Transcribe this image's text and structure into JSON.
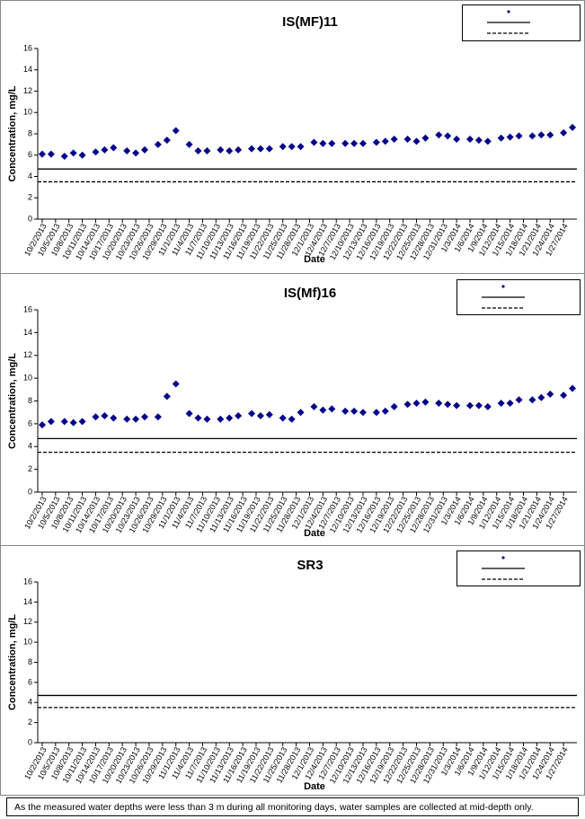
{
  "chart_data": [
    {
      "type": "scatter",
      "title": "IS(MF)11",
      "xlabel": "Date",
      "ylabel": "Concentration, mg/L",
      "x": [
        "10/2/2013",
        "10/4/2013",
        "10/7/2013",
        "10/9/2013",
        "10/11/2013",
        "10/14/2013",
        "10/16/2013",
        "10/18/2013",
        "10/21/2013",
        "10/23/2013",
        "10/25/2013",
        "10/28/2013",
        "10/30/2013",
        "11/1/2013",
        "11/4/2013",
        "11/6/2013",
        "11/8/2013",
        "11/11/2013",
        "11/13/2013",
        "11/15/2013",
        "11/18/2013",
        "11/20/2013",
        "11/22/2013",
        "11/25/2013",
        "11/27/2013",
        "11/29/2013",
        "12/2/2013",
        "12/4/2013",
        "12/6/2013",
        "12/9/2013",
        "12/11/2013",
        "12/13/2013",
        "12/16/2013",
        "12/18/2013",
        "12/20/2013",
        "12/23/2013",
        "12/25/2013",
        "12/27/2013",
        "12/30/2013",
        "1/1/2014",
        "1/3/2014",
        "1/6/2014",
        "1/8/2014",
        "1/10/2014",
        "1/13/2014",
        "1/15/2014",
        "1/17/2014",
        "1/20/2014",
        "1/22/2014",
        "1/24/2014",
        "1/27/2014",
        "1/29/2014"
      ],
      "series": [
        {
          "color": "#00008b",
          "values": [
            6.1,
            6.1,
            5.9,
            6.2,
            6.0,
            6.3,
            6.5,
            6.7,
            6.4,
            6.2,
            6.5,
            7.0,
            7.4,
            8.3,
            7.0,
            6.4,
            6.4,
            6.5,
            6.4,
            6.5,
            6.6,
            6.6,
            6.6,
            6.8,
            6.8,
            6.8,
            7.2,
            7.1,
            7.1,
            7.1,
            7.1,
            7.1,
            7.2,
            7.3,
            7.5,
            7.5,
            7.3,
            7.6,
            7.9,
            7.8,
            7.5,
            7.5,
            7.4,
            7.3,
            7.6,
            7.7,
            7.8,
            7.8,
            7.9,
            7.9,
            8.1,
            8.6
          ]
        }
      ],
      "reference_lines": [
        {
          "value": 4.7,
          "style": "solid",
          "color": "#000000"
        },
        {
          "value": 3.5,
          "style": "dashed",
          "color": "#000000"
        }
      ],
      "xlim": [
        "10/1/2013",
        "1/30/2014"
      ],
      "xticks": [
        "10/2/2013",
        "10/5/2013",
        "10/8/2013",
        "10/11/2013",
        "10/14/2013",
        "10/17/2013",
        "10/20/2013",
        "10/23/2013",
        "10/26/2013",
        "10/29/2013",
        "11/1/2013",
        "11/4/2013",
        "11/7/2013",
        "11/10/2013",
        "11/13/2013",
        "11/16/2013",
        "11/19/2013",
        "11/22/2013",
        "11/25/2013",
        "11/28/2013",
        "12/1/2013",
        "12/4/2013",
        "12/7/2013",
        "12/10/2013",
        "12/13/2013",
        "12/16/2013",
        "12/19/2013",
        "12/22/2013",
        "12/25/2013",
        "12/28/2013",
        "12/31/2013",
        "1/3/2014",
        "1/6/2014",
        "1/9/2014",
        "1/12/2014",
        "1/15/2014",
        "1/18/2014",
        "1/21/2014",
        "1/24/2014",
        "1/27/2014"
      ],
      "ylim": [
        0,
        16
      ],
      "yticks": [
        0,
        2,
        4,
        6,
        8,
        10,
        12,
        14,
        16
      ],
      "grid": false
    },
    {
      "type": "scatter",
      "title": "IS(Mf)16",
      "xlabel": "Date",
      "ylabel": "Concentration, mg/L",
      "x": [
        "10/2/2013",
        "10/4/2013",
        "10/7/2013",
        "10/9/2013",
        "10/11/2013",
        "10/14/2013",
        "10/16/2013",
        "10/18/2013",
        "10/21/2013",
        "10/23/2013",
        "10/25/2013",
        "10/28/2013",
        "10/30/2013",
        "11/1/2013",
        "11/4/2013",
        "11/6/2013",
        "11/8/2013",
        "11/11/2013",
        "11/13/2013",
        "11/15/2013",
        "11/18/2013",
        "11/20/2013",
        "11/22/2013",
        "11/25/2013",
        "11/27/2013",
        "11/29/2013",
        "12/2/2013",
        "12/4/2013",
        "12/6/2013",
        "12/9/2013",
        "12/11/2013",
        "12/13/2013",
        "12/16/2013",
        "12/18/2013",
        "12/20/2013",
        "12/23/2013",
        "12/25/2013",
        "12/27/2013",
        "12/30/2013",
        "1/1/2014",
        "1/3/2014",
        "1/6/2014",
        "1/8/2014",
        "1/10/2014",
        "1/13/2014",
        "1/15/2014",
        "1/17/2014",
        "1/20/2014",
        "1/22/2014",
        "1/24/2014",
        "1/27/2014",
        "1/29/2014"
      ],
      "series": [
        {
          "color": "#00008b",
          "values": [
            5.9,
            6.2,
            6.2,
            6.1,
            6.2,
            6.6,
            6.7,
            6.5,
            6.4,
            6.4,
            6.6,
            6.6,
            8.4,
            9.5,
            6.9,
            6.5,
            6.4,
            6.4,
            6.5,
            6.7,
            6.9,
            6.7,
            6.8,
            6.5,
            6.4,
            7.0,
            7.5,
            7.2,
            7.3,
            7.1,
            7.1,
            7.0,
            7.0,
            7.1,
            7.5,
            7.7,
            7.8,
            7.9,
            7.8,
            7.7,
            7.6,
            7.6,
            7.6,
            7.5,
            7.8,
            7.8,
            8.1,
            8.1,
            8.3,
            8.6,
            8.5,
            9.1
          ]
        }
      ],
      "reference_lines": [
        {
          "value": 4.7,
          "style": "solid",
          "color": "#000000"
        },
        {
          "value": 3.5,
          "style": "dashed",
          "color": "#000000"
        }
      ],
      "xlim": [
        "10/1/2013",
        "1/30/2014"
      ],
      "xticks": [
        "10/2/2013",
        "10/5/2013",
        "10/8/2013",
        "10/11/2013",
        "10/14/2013",
        "10/17/2013",
        "10/20/2013",
        "10/23/2013",
        "10/26/2013",
        "10/29/2013",
        "11/1/2013",
        "11/4/2013",
        "11/7/2013",
        "11/10/2013",
        "11/13/2013",
        "11/16/2013",
        "11/19/2013",
        "11/22/2013",
        "11/25/2013",
        "11/28/2013",
        "12/1/2013",
        "12/4/2013",
        "12/7/2013",
        "12/10/2013",
        "12/13/2013",
        "12/16/2013",
        "12/19/2013",
        "12/22/2013",
        "12/25/2013",
        "12/28/2013",
        "12/31/2013",
        "1/3/2014",
        "1/6/2014",
        "1/9/2014",
        "1/12/2014",
        "1/15/2014",
        "1/18/2014",
        "1/21/2014",
        "1/24/2014",
        "1/27/2014"
      ],
      "ylim": [
        0,
        16
      ],
      "yticks": [
        0,
        2,
        4,
        6,
        8,
        10,
        12,
        14,
        16
      ],
      "grid": false
    },
    {
      "type": "scatter",
      "title": "SR3",
      "xlabel": "Date",
      "ylabel": "Concentration, mg/L",
      "x": [],
      "series": [
        {
          "color": "#00008b",
          "values": []
        }
      ],
      "reference_lines": [
        {
          "value": 4.7,
          "style": "solid",
          "color": "#000000"
        },
        {
          "value": 3.5,
          "style": "dashed",
          "color": "#000000"
        }
      ],
      "xlim": [
        "10/1/2013",
        "1/30/2014"
      ],
      "xticks": [
        "10/2/2013",
        "10/5/2013",
        "10/8/2013",
        "10/11/2013",
        "10/14/2013",
        "10/17/2013",
        "10/20/2013",
        "10/23/2013",
        "10/26/2013",
        "10/29/2013",
        "11/1/2013",
        "11/4/2013",
        "11/7/2013",
        "11/10/2013",
        "11/13/2013",
        "11/16/2013",
        "11/19/2013",
        "11/22/2013",
        "11/25/2013",
        "11/28/2013",
        "12/1/2013",
        "12/4/2013",
        "12/7/2013",
        "12/10/2013",
        "12/13/2013",
        "12/16/2013",
        "12/19/2013",
        "12/22/2013",
        "12/25/2013",
        "12/28/2013",
        "12/31/2013",
        "1/3/2014",
        "1/6/2014",
        "1/9/2014",
        "1/12/2014",
        "1/15/2014",
        "1/18/2014",
        "1/21/2014",
        "1/24/2014",
        "1/27/2014"
      ],
      "ylim": [
        0,
        16
      ],
      "yticks": [
        0,
        2,
        4,
        6,
        8,
        10,
        12,
        14,
        16
      ],
      "grid": false
    }
  ],
  "footnote": "As the measured water depths were less than 3 m during all monitoring days, water samples are collected  at mid-depth only."
}
